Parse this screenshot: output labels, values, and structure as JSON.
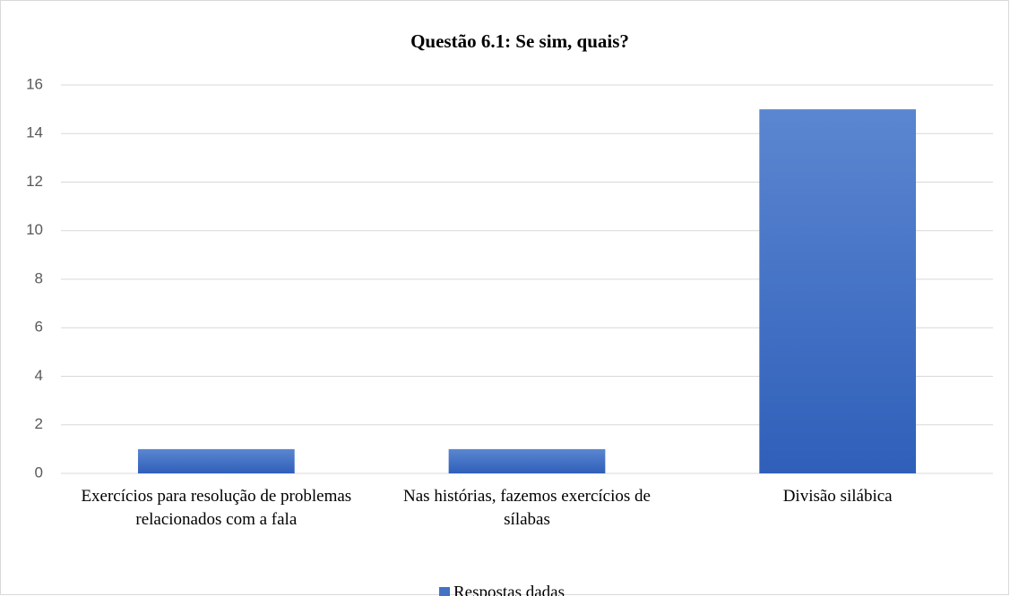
{
  "chart_data": {
    "type": "bar",
    "title": "Questão 6.1: Se sim, quais?",
    "categories": [
      "Exercícios para resolução de problemas relacionados com a fala",
      "Nas histórias, fazemos exercícios de sílabas",
      "Divisão silábica"
    ],
    "series": [
      {
        "name": "Respostas dadas",
        "color": "#4472c4",
        "values": [
          1,
          1,
          15
        ]
      }
    ],
    "ylim": [
      0,
      16
    ],
    "yticks": [
      0,
      2,
      4,
      6,
      8,
      10,
      12,
      14,
      16
    ],
    "grid": true,
    "legend": "bottom"
  }
}
